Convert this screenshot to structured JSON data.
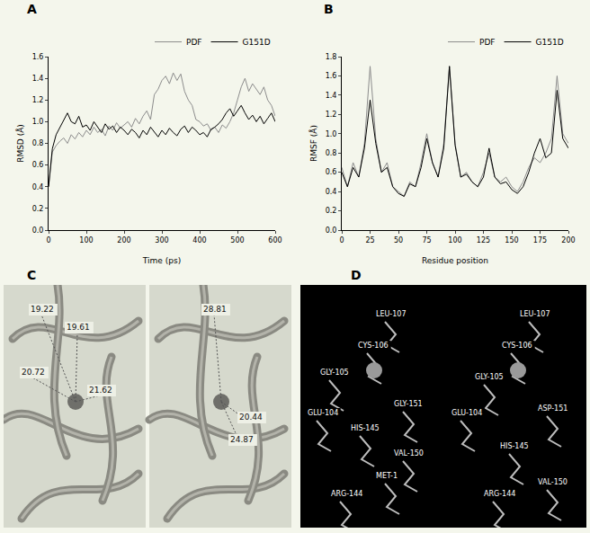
{
  "panels": [
    "A",
    "B",
    "C",
    "D"
  ],
  "chart_data": [
    {
      "type": "line",
      "xlabel": "Time (ps)",
      "ylabel": "RMSD (Å)",
      "x": [
        0,
        10,
        20,
        30,
        40,
        50,
        60,
        70,
        80,
        90,
        100,
        110,
        120,
        130,
        140,
        150,
        160,
        170,
        180,
        190,
        200,
        210,
        220,
        230,
        240,
        250,
        260,
        270,
        280,
        290,
        300,
        310,
        320,
        330,
        340,
        350,
        360,
        370,
        380,
        390,
        400,
        410,
        420,
        430,
        440,
        450,
        460,
        470,
        480,
        490,
        500,
        510,
        520,
        530,
        540,
        550,
        560,
        570,
        580,
        590,
        600
      ],
      "series": [
        {
          "name": "PDF",
          "color": "#8c8c8c",
          "values": [
            0.4,
            0.72,
            0.78,
            0.82,
            0.85,
            0.8,
            0.88,
            0.84,
            0.9,
            0.86,
            0.92,
            0.88,
            0.95,
            0.9,
            0.93,
            0.87,
            0.96,
            0.92,
            0.99,
            0.94,
            0.97,
            1.0,
            0.95,
            1.03,
            0.98,
            1.05,
            1.1,
            1.02,
            1.25,
            1.3,
            1.38,
            1.42,
            1.35,
            1.45,
            1.38,
            1.44,
            1.28,
            1.2,
            1.15,
            1.02,
            1.0,
            0.96,
            0.98,
            0.92,
            0.95,
            0.9,
            0.97,
            0.94,
            1.0,
            1.08,
            1.2,
            1.32,
            1.4,
            1.28,
            1.35,
            1.3,
            1.25,
            1.32,
            1.2,
            1.15,
            1.05
          ]
        },
        {
          "name": "G151D",
          "color": "#000000",
          "values": [
            0.4,
            0.75,
            0.88,
            0.95,
            1.02,
            1.08,
            1.0,
            0.98,
            1.05,
            0.95,
            0.97,
            0.92,
            1.0,
            0.95,
            0.9,
            0.98,
            0.93,
            0.96,
            0.9,
            0.95,
            0.92,
            0.88,
            0.93,
            0.9,
            0.85,
            0.92,
            0.88,
            0.95,
            0.9,
            0.86,
            0.92,
            0.88,
            0.94,
            0.9,
            0.87,
            0.93,
            0.96,
            0.9,
            0.95,
            0.92,
            0.88,
            0.9,
            0.86,
            0.93,
            0.95,
            0.98,
            1.02,
            1.08,
            1.12,
            1.05,
            1.1,
            1.15,
            1.08,
            1.02,
            1.06,
            1.0,
            1.05,
            0.98,
            1.03,
            1.08,
            1.0
          ]
        }
      ],
      "xlim": [
        0,
        600
      ],
      "xticks": [
        0,
        100,
        200,
        300,
        400,
        500,
        600
      ],
      "ylim": [
        0,
        1.6
      ],
      "yticks": [
        {
          "value": 0,
          "label": "0.0"
        },
        0.2,
        0.4,
        0.6,
        0.8,
        {
          "value": 1,
          "label": "1.0"
        },
        1.2,
        1.4,
        1.6
      ],
      "grid": false,
      "legend": "top"
    },
    {
      "type": "line",
      "xlabel": "Residue position",
      "ylabel": "RMSF (Å)",
      "x": [
        0,
        5,
        10,
        15,
        20,
        25,
        30,
        35,
        40,
        45,
        50,
        55,
        60,
        65,
        70,
        75,
        80,
        85,
        90,
        95,
        100,
        105,
        110,
        115,
        120,
        125,
        130,
        135,
        140,
        145,
        150,
        155,
        160,
        165,
        170,
        175,
        180,
        185,
        190,
        195,
        200
      ],
      "series": [
        {
          "name": "PDF",
          "color": "#8c8c8c",
          "values": [
            0.65,
            0.45,
            0.7,
            0.55,
            0.9,
            1.7,
            0.95,
            0.6,
            0.7,
            0.45,
            0.4,
            0.35,
            0.5,
            0.45,
            0.7,
            1.0,
            0.7,
            0.55,
            0.9,
            1.7,
            0.9,
            0.55,
            0.6,
            0.5,
            0.45,
            0.6,
            0.8,
            0.55,
            0.5,
            0.55,
            0.45,
            0.4,
            0.5,
            0.65,
            0.75,
            0.7,
            0.8,
            0.95,
            1.6,
            1.0,
            0.9
          ]
        },
        {
          "name": "G151D",
          "color": "#000000",
          "values": [
            0.6,
            0.45,
            0.65,
            0.55,
            0.85,
            1.35,
            0.9,
            0.6,
            0.65,
            0.45,
            0.38,
            0.35,
            0.48,
            0.45,
            0.65,
            0.95,
            0.7,
            0.55,
            0.85,
            1.7,
            0.88,
            0.55,
            0.58,
            0.5,
            0.45,
            0.55,
            0.85,
            0.55,
            0.48,
            0.5,
            0.42,
            0.38,
            0.45,
            0.6,
            0.8,
            0.95,
            0.75,
            0.8,
            1.45,
            0.95,
            0.85
          ]
        }
      ],
      "xlim": [
        0,
        200
      ],
      "xticks": [
        0,
        25,
        50,
        75,
        100,
        125,
        150,
        175,
        200
      ],
      "ylim": [
        0,
        1.8
      ],
      "yticks": [
        {
          "value": 0,
          "label": "0.0"
        },
        0.2,
        0.4,
        0.6,
        0.8,
        {
          "value": 1,
          "label": "1.0"
        },
        1.2,
        1.4,
        1.6,
        1.8
      ],
      "grid": false,
      "legend": "top"
    }
  ],
  "structures": [
    {
      "views": [
        [
          "19.22",
          "19.61",
          "20.72",
          "21.62"
        ],
        [
          "28.81",
          "20.44",
          "24.87"
        ]
      ]
    },
    {
      "views": [
        [
          "LEU-107",
          "CYS-106",
          "GLY-105",
          "GLU-104",
          "HIS-145",
          "GLY-151",
          "VAL-150",
          "ARG-144",
          "MET-1"
        ],
        [
          "LEU-107",
          "CYS-106",
          "GLY-105",
          "GLU-104",
          "HIS-145",
          "ARG-144",
          "VAL-150",
          "ASP-151"
        ]
      ]
    }
  ]
}
